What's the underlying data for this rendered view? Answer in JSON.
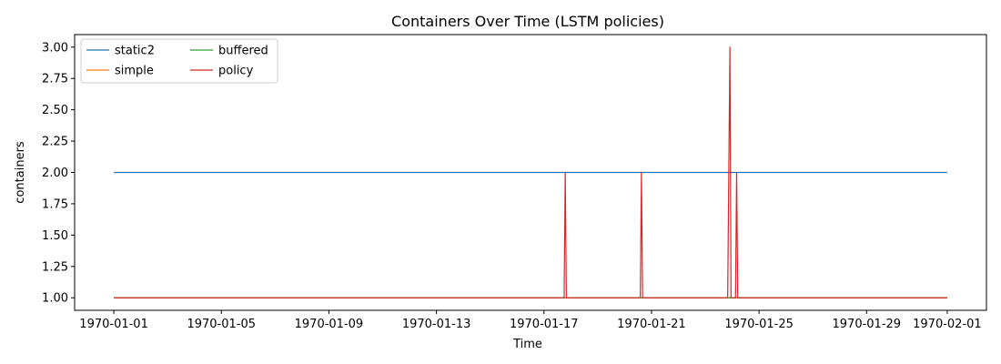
{
  "chart_data": {
    "type": "line",
    "title": "Containers Over Time (LSTM policies)",
    "xlabel": "Time",
    "ylabel": "containers",
    "xlim": [
      "1969-12-30T13:00:00",
      "1970-02-02T11:00:00"
    ],
    "ylim": [
      0.9,
      3.1
    ],
    "x_ticks": [
      "1970-01-01",
      "1970-01-05",
      "1970-01-09",
      "1970-01-13",
      "1970-01-17",
      "1970-01-21",
      "1970-01-25",
      "1970-01-29",
      "1970-02-01"
    ],
    "y_ticks": [
      "1.00",
      "1.25",
      "1.50",
      "1.75",
      "2.00",
      "2.25",
      "2.50",
      "2.75",
      "3.00"
    ],
    "grid": false,
    "legend_placement": "top-left",
    "legend_columns": 2,
    "series": [
      {
        "name": "static2",
        "color": "#1f77b4",
        "points": [
          [
            "1970-01-01T00:00:00",
            2
          ],
          [
            "1970-02-01T00:00:00",
            2
          ]
        ]
      },
      {
        "name": "simple",
        "color": "#ff7f0e",
        "points": [
          [
            "1970-01-01T00:00:00",
            1
          ],
          [
            "1970-02-01T00:00:00",
            1
          ]
        ]
      },
      {
        "name": "buffered",
        "color": "#2ca02c",
        "points": [
          [
            "1970-01-01T00:00:00",
            1
          ],
          [
            "1970-02-01T00:00:00",
            1
          ]
        ]
      },
      {
        "name": "policy",
        "color": "#d62728",
        "points": [
          [
            "1970-01-01T00:00:00",
            1
          ],
          [
            "1970-01-17T18:00:00",
            1
          ],
          [
            "1970-01-17T19:00:00",
            2
          ],
          [
            "1970-01-17T20:00:00",
            1
          ],
          [
            "1970-01-20T14:00:00",
            1
          ],
          [
            "1970-01-20T15:00:00",
            2
          ],
          [
            "1970-01-20T16:00:00",
            1
          ],
          [
            "1970-01-23T20:00:00",
            1
          ],
          [
            "1970-01-23T21:00:00",
            2
          ],
          [
            "1970-01-23T22:00:00",
            3
          ],
          [
            "1970-01-23T23:00:00",
            1
          ],
          [
            "1970-01-24T03:00:00",
            1
          ],
          [
            "1970-01-24T04:00:00",
            2
          ],
          [
            "1970-01-24T05:00:00",
            1
          ],
          [
            "1970-02-01T00:00:00",
            1
          ]
        ]
      }
    ]
  }
}
